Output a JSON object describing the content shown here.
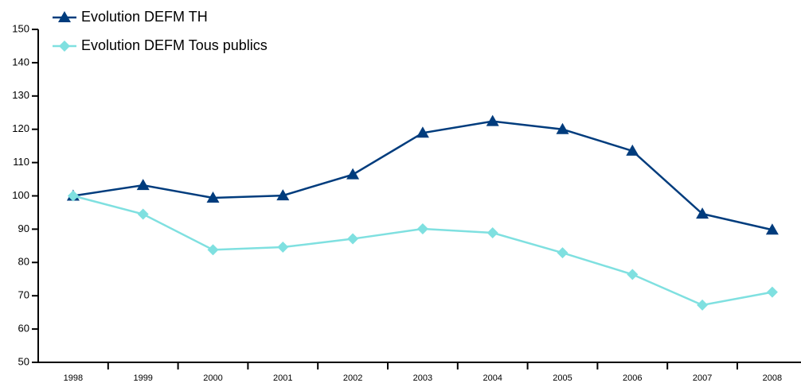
{
  "chart_data": {
    "type": "line",
    "categories": [
      "1998",
      "1999",
      "2000",
      "2001",
      "2002",
      "2003",
      "2004",
      "2005",
      "2006",
      "2007",
      "2008"
    ],
    "series": [
      {
        "name": "Evolution DEFM TH",
        "color": "#003c7d",
        "marker": "triangle",
        "values": [
          100,
          103.2,
          99.4,
          100.1,
          106.4,
          118.9,
          122.4,
          120,
          113.5,
          94.6,
          89.8
        ]
      },
      {
        "name": "Evolution DEFM Tous publics",
        "color": "#7fe0e0",
        "marker": "diamond",
        "values": [
          100,
          94.5,
          83.8,
          84.6,
          87.1,
          90.1,
          88.9,
          82.9,
          76.4,
          67.2,
          71.1
        ]
      }
    ],
    "ylim": [
      50,
      150
    ],
    "yticks": [
      50,
      60,
      70,
      80,
      90,
      100,
      110,
      120,
      130,
      140,
      150
    ],
    "legend": "upper left",
    "grid": false
  }
}
